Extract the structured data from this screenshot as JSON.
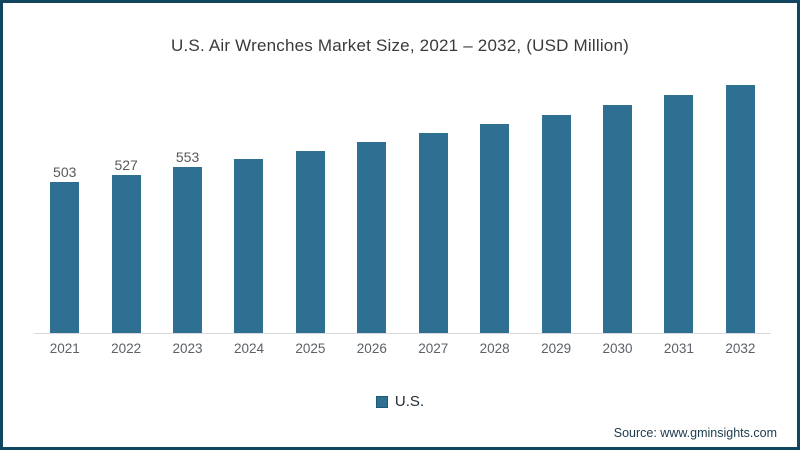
{
  "chart_data": {
    "type": "bar",
    "title": "U.S. Air Wrenches Market Size, 2021 – 2032, (USD Million)",
    "categories": [
      "2021",
      "2022",
      "2023",
      "2024",
      "2025",
      "2026",
      "2027",
      "2028",
      "2029",
      "2030",
      "2031",
      "2032"
    ],
    "values": [
      503,
      527,
      553,
      580,
      608,
      637,
      666,
      696,
      727,
      759,
      794,
      828
    ],
    "data_labels": [
      "503",
      "527",
      "553",
      "",
      "",
      "",
      "",
      "",
      "",
      "",
      "",
      ""
    ],
    "xlabel": "",
    "ylabel": "",
    "ylim": [
      0,
      900
    ],
    "grid": false,
    "legend_position": "bottom-center",
    "bar_color": "#2f7092",
    "axis_line_color": "#d9d9d9"
  },
  "legend": {
    "label": "U.S.",
    "marker_color": "#2f7092"
  },
  "source": {
    "text": "Source: www.gminsights.com"
  },
  "frame": {
    "border_color": "#12465e",
    "background_color": "#ffffff"
  }
}
